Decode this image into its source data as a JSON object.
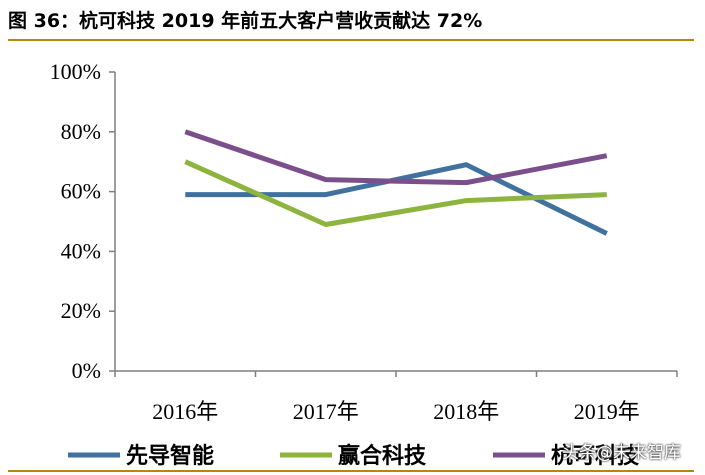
{
  "title": "图 36：杭可科技 2019 年前五大客户营收贡献达 72%",
  "watermark": "头条@未来智库",
  "chart_data": {
    "type": "line",
    "categories": [
      "2016年",
      "2017年",
      "2018年",
      "2019年"
    ],
    "yticks": [
      "0%",
      "20%",
      "40%",
      "60%",
      "80%",
      "100%"
    ],
    "ylim": [
      0,
      100
    ],
    "unit": "%",
    "grid": false,
    "legend_position": "bottom",
    "series": [
      {
        "name": "先导智能",
        "color": "#41729f",
        "values": [
          59,
          59,
          69,
          46
        ]
      },
      {
        "name": "赢合科技",
        "color": "#8db43e",
        "values": [
          70,
          49,
          57,
          59
        ]
      },
      {
        "name": "杭可科技",
        "color": "#7a4f8c",
        "values": [
          80,
          64,
          63,
          72
        ]
      }
    ]
  }
}
